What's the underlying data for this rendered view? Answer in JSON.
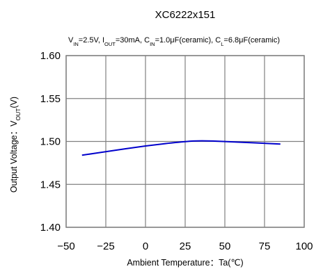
{
  "chart_data": {
    "type": "line",
    "title": "XC6222x151",
    "subtitle_parts": [
      {
        "t": "V"
      },
      {
        "t": "IN",
        "sub": true
      },
      {
        "t": "=2.5V, I"
      },
      {
        "t": "OUT",
        "sub": true
      },
      {
        "t": "=30mA, C"
      },
      {
        "t": "IN",
        "sub": true
      },
      {
        "t": "=1.0μF(ceramic), C"
      },
      {
        "t": "L",
        "sub": true
      },
      {
        "t": "=6.8μF(ceramic)"
      }
    ],
    "xlabel": "Ambient Temperature：Ta(℃)",
    "ylabel_parts": [
      {
        "t": "Output Voltage：V"
      },
      {
        "t": "OUT",
        "sub": true
      },
      {
        "t": "(V)"
      }
    ],
    "xlim": [
      -50,
      100
    ],
    "ylim": [
      1.4,
      1.6
    ],
    "x_ticks": [
      "−50",
      "−25",
      "0",
      "25",
      "50",
      "75",
      "100"
    ],
    "y_ticks": [
      "1.60",
      "1.55",
      "1.50",
      "1.45",
      "1.40"
    ],
    "x_tick_values": [
      -50,
      -25,
      0,
      25,
      50,
      75,
      100
    ],
    "y_tick_values": [
      1.6,
      1.55,
      1.5,
      1.45,
      1.4
    ],
    "grid": true,
    "series": [
      {
        "color": "#0000cc",
        "x": [
          -40,
          -25,
          0,
          25,
          35,
          50,
          85
        ],
        "y": [
          1.484,
          1.488,
          1.495,
          1.5,
          1.501,
          1.5,
          1.497
        ]
      }
    ]
  }
}
